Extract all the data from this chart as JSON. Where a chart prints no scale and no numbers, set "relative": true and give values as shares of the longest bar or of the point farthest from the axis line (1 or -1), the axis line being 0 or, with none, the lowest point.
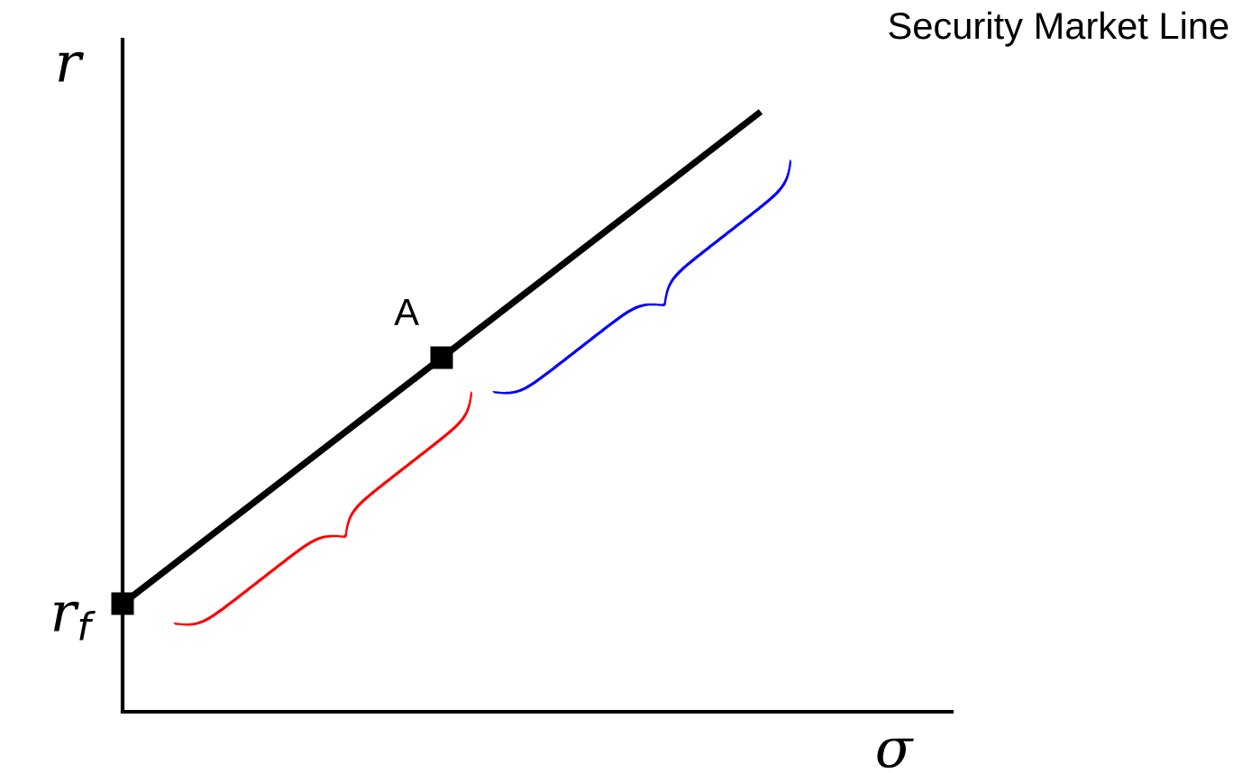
{
  "chart_data": {
    "type": "line",
    "relative": true,
    "title": "Security Market Line",
    "xlabel": "σ",
    "ylabel": "r",
    "categories": [
      null,
      null,
      null
    ],
    "marker": "square",
    "series": [
      {
        "color": "#000000",
        "values": [
          0.18,
          0.59,
          1
        ]
      }
    ],
    "annotations": [
      "r$_{f}$",
      "A"
    ]
  }
}
